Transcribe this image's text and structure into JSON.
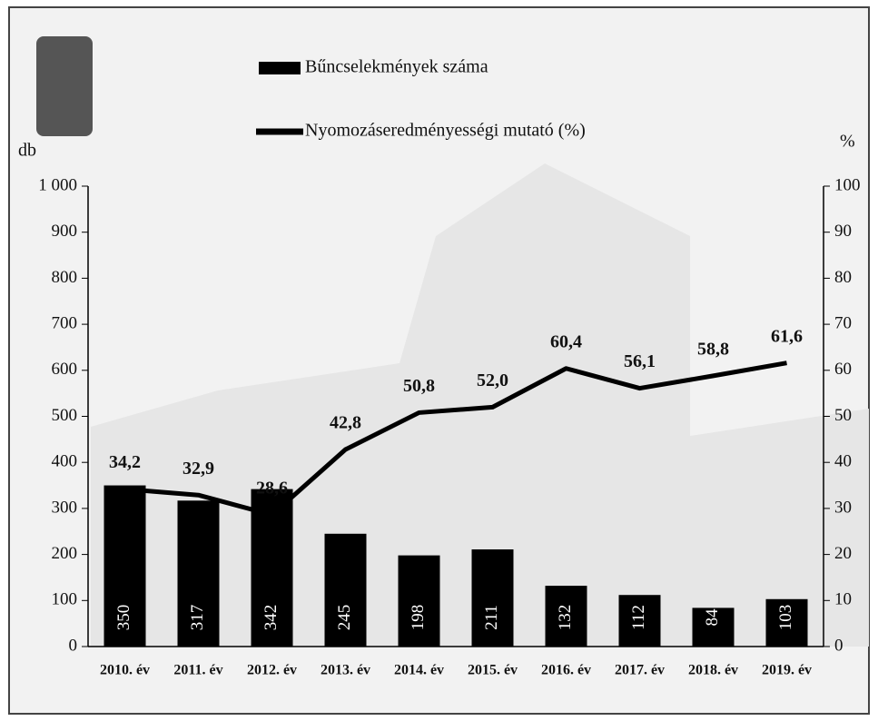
{
  "chart_data": {
    "type": "bar_line",
    "categories": [
      "2010. év",
      "2011. év",
      "2012. év",
      "2013. év",
      "2014. év",
      "2015. év",
      "2016. év",
      "2017. év",
      "2018. év",
      "2019. év"
    ],
    "series": [
      {
        "name": "Bűncselekmények száma",
        "color": "#000000",
        "type": "bar",
        "axis": "y",
        "values": [
          350,
          317,
          342,
          245,
          198,
          211,
          132,
          112,
          84,
          103
        ]
      },
      {
        "name": "Nyomozáseredményességi mutató (%)",
        "color": "#000000",
        "type": "line",
        "axis": "y2",
        "values": [
          34.2,
          32.9,
          28.6,
          42.8,
          50.8,
          52.0,
          60.4,
          56.1,
          58.8,
          61.6
        ],
        "value_labels": [
          "34,2",
          "32,9",
          "28,6",
          "42,8",
          "50,8",
          "52,0",
          "60,4",
          "56,1",
          "58,8",
          "61,6"
        ]
      }
    ],
    "ylabel": "db",
    "y2label": "%",
    "ylim": [
      0,
      1000
    ],
    "yticks": [
      0,
      100,
      200,
      300,
      400,
      500,
      600,
      700,
      800,
      900,
      {
        "value": 1000,
        "label": "1 000"
      }
    ],
    "y2lim": [
      0,
      100
    ],
    "y2ticks": [
      0,
      10,
      20,
      30,
      40,
      50,
      60,
      70,
      80,
      90,
      100
    ],
    "grid": false,
    "legend": "top"
  }
}
